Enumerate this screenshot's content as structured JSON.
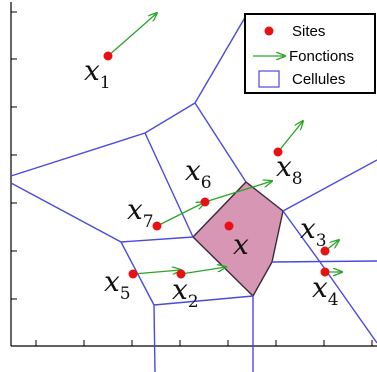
{
  "legend": {
    "sites": "Sites",
    "fonctions": "Fonctions",
    "cellules": "Cellules"
  },
  "labels": {
    "x": "x",
    "sub_1": "1",
    "sub_2": "2",
    "sub_3": "3",
    "sub_4": "4",
    "sub_5": "5",
    "sub_6": "6",
    "sub_7": "7",
    "sub_8": "8"
  },
  "colors": {
    "site": "#e81010",
    "arrow": "#2aa52a",
    "cell_edge": "#4a4ae0",
    "cell_fill": "#d696b4",
    "cell_border": "#3a2a3a"
  }
}
